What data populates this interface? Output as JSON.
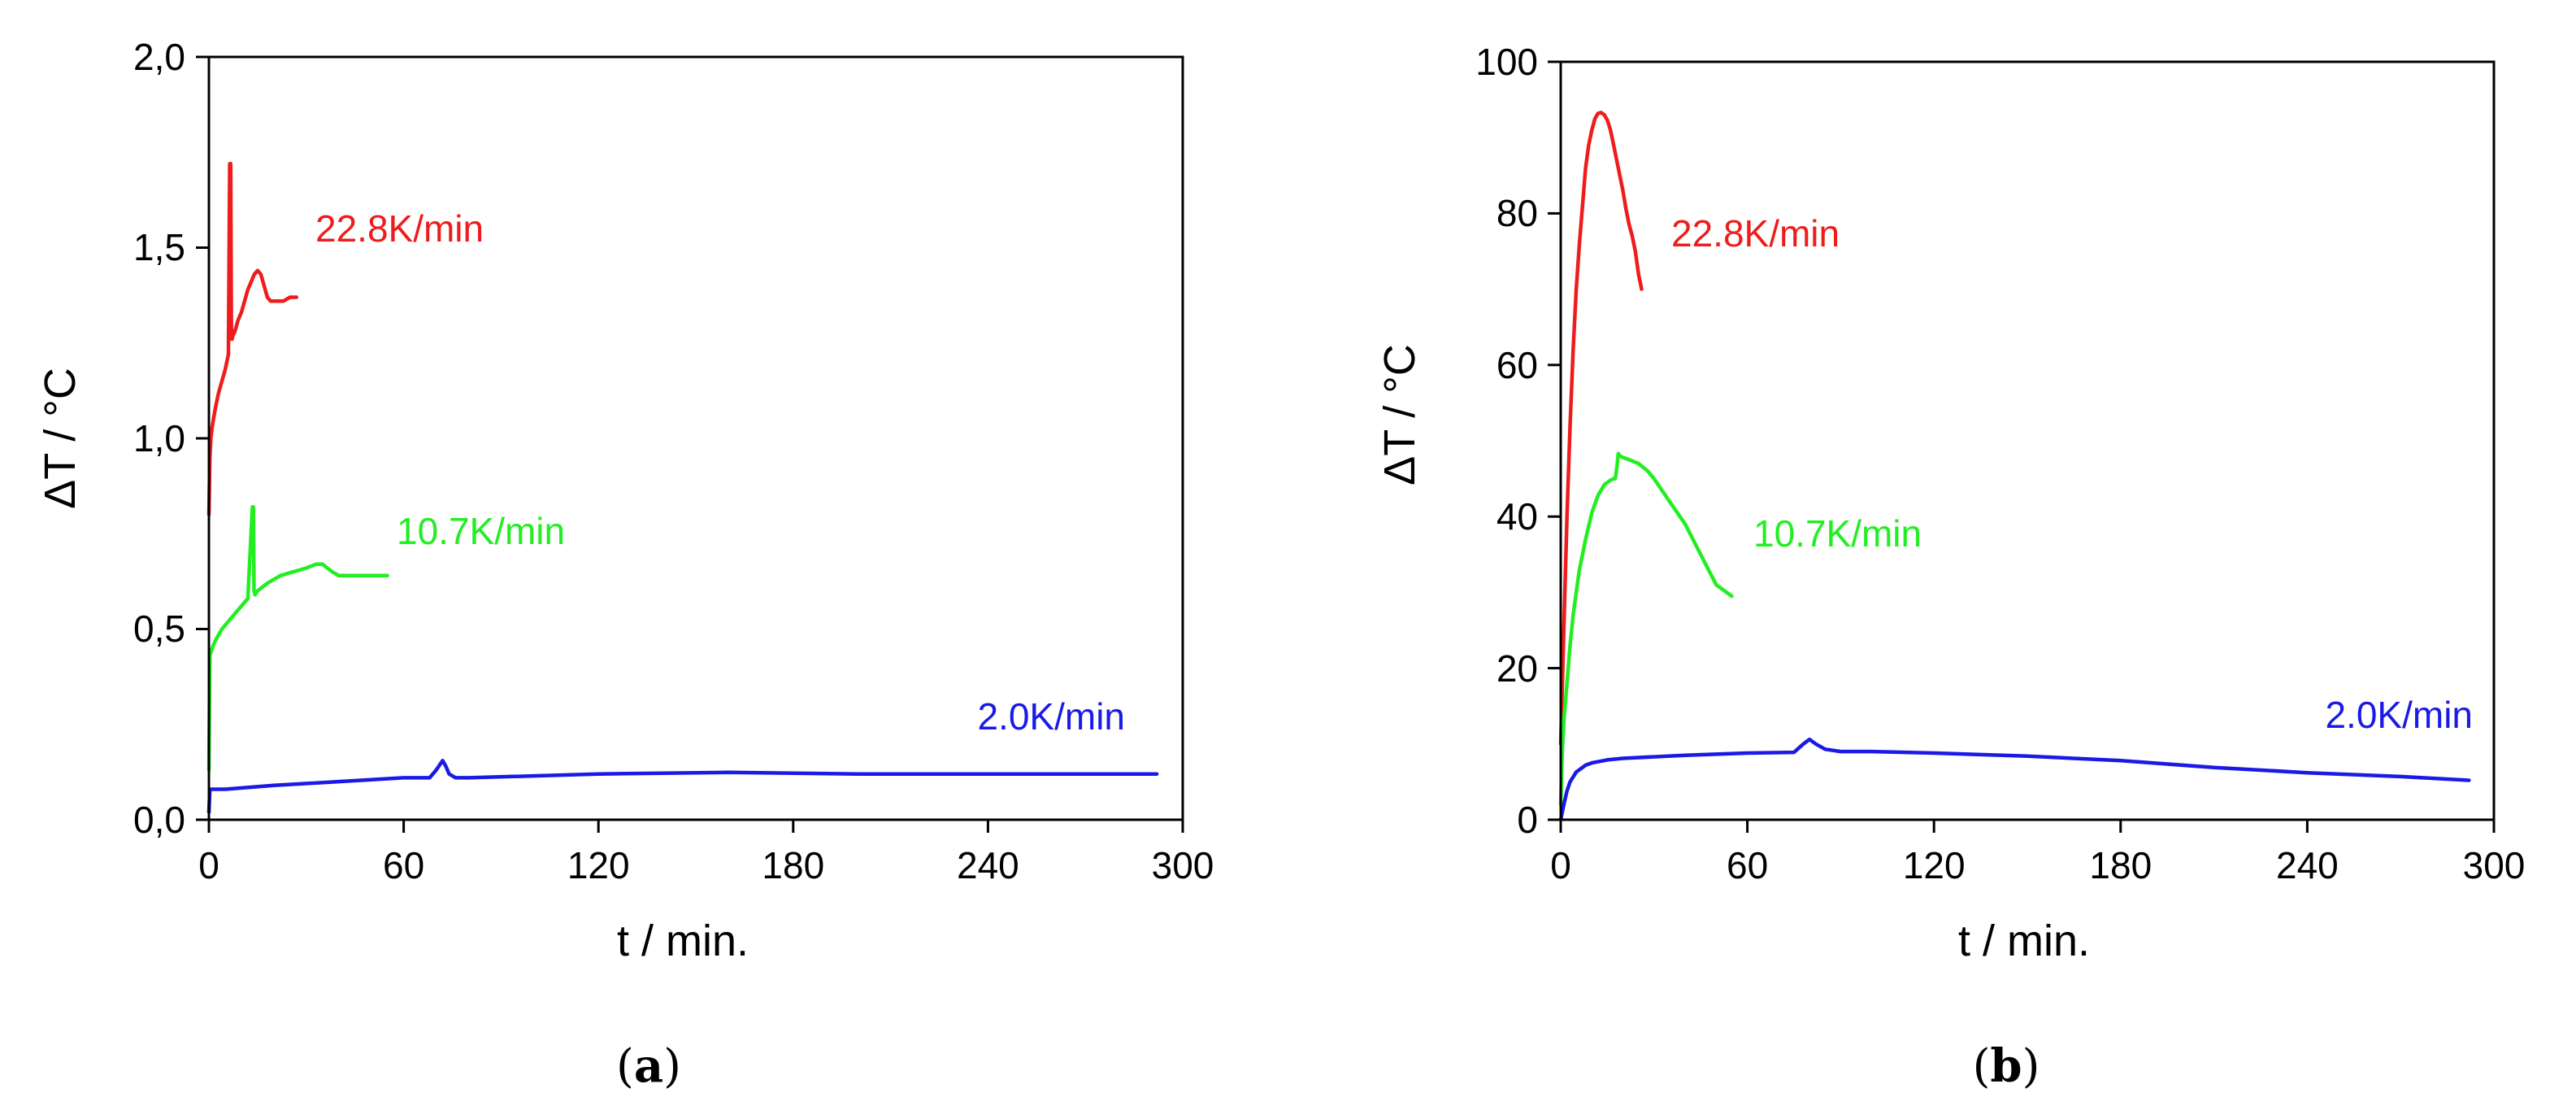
{
  "colors": {
    "red": "#ee1c1c",
    "green": "#22ee22",
    "blue": "#1a1ae6"
  },
  "chart_data": [
    {
      "type": "line",
      "panel": "a",
      "caption_label": "a",
      "xlabel": "t / min.",
      "ylabel": "ΔT / °C",
      "xlim": [
        0,
        300
      ],
      "ylim": [
        0,
        2
      ],
      "x_ticks": [
        0,
        60,
        120,
        180,
        240,
        300
      ],
      "x_tick_labels": [
        "0",
        "60",
        "120",
        "180",
        "240",
        "300"
      ],
      "y_ticks": [
        0,
        0.5,
        1,
        1.5,
        2
      ],
      "y_tick_labels": [
        "0,0",
        "0,5",
        "1,0",
        "1,5",
        "2,0"
      ],
      "series": [
        {
          "name": "22.8K/min",
          "color": "red",
          "x": [
            0,
            0.3,
            0.6,
            1,
            2,
            3,
            4,
            5,
            6,
            6.4,
            6.7,
            6.9,
            7.1,
            7.4,
            8,
            9,
            10,
            11,
            12,
            13,
            14,
            15,
            16,
            17,
            18,
            19,
            20,
            21,
            23,
            25,
            27
          ],
          "y": [
            0.8,
            0.95,
            1.0,
            1.03,
            1.08,
            1.12,
            1.15,
            1.18,
            1.22,
            1.72,
            1.72,
            1.3,
            1.26,
            1.27,
            1.28,
            1.31,
            1.33,
            1.36,
            1.39,
            1.41,
            1.43,
            1.44,
            1.43,
            1.4,
            1.37,
            1.36,
            1.36,
            1.36,
            1.36,
            1.37,
            1.37
          ]
        },
        {
          "name": "10.7K/min",
          "color": "green",
          "x": [
            0,
            0.3,
            1,
            2,
            4,
            6,
            8,
            10,
            12,
            13.4,
            13.7,
            13.9,
            14.2,
            15,
            18,
            22,
            26,
            30,
            33,
            35,
            38,
            40,
            42,
            45,
            50,
            55
          ],
          "y": [
            0.13,
            0.43,
            0.45,
            0.47,
            0.5,
            0.52,
            0.54,
            0.56,
            0.58,
            0.82,
            0.82,
            0.6,
            0.59,
            0.6,
            0.62,
            0.64,
            0.65,
            0.66,
            0.67,
            0.67,
            0.65,
            0.64,
            0.64,
            0.64,
            0.64,
            0.64
          ]
        },
        {
          "name": "2.0K/min",
          "color": "blue",
          "x": [
            0,
            0.3,
            1,
            5,
            20,
            40,
            60,
            68,
            70,
            72,
            73,
            74,
            76,
            80,
            100,
            120,
            140,
            160,
            180,
            200,
            220,
            240,
            260,
            280,
            292
          ],
          "y": [
            0.02,
            0.08,
            0.08,
            0.08,
            0.09,
            0.1,
            0.11,
            0.11,
            0.13,
            0.155,
            0.14,
            0.12,
            0.11,
            0.11,
            0.115,
            0.12,
            0.122,
            0.124,
            0.122,
            0.12,
            0.12,
            0.12,
            0.12,
            0.12,
            0.12
          ]
        }
      ]
    },
    {
      "type": "line",
      "panel": "b",
      "caption_label": "b",
      "xlabel": "t / min.",
      "ylabel": "ΔT / °C",
      "xlim": [
        0,
        300
      ],
      "ylim": [
        0,
        100
      ],
      "x_ticks": [
        0,
        60,
        120,
        180,
        240,
        300
      ],
      "x_tick_labels": [
        "0",
        "60",
        "120",
        "180",
        "240",
        "300"
      ],
      "y_ticks": [
        0,
        20,
        40,
        60,
        80,
        100
      ],
      "y_tick_labels": [
        "0",
        "20",
        "40",
        "60",
        "80",
        "100"
      ],
      "series": [
        {
          "name": "22.8K/min",
          "color": "red",
          "x": [
            0,
            1,
            2,
            3,
            4,
            5,
            6,
            7,
            8,
            9,
            10,
            11,
            12,
            13,
            14,
            15,
            16,
            17,
            18,
            19,
            20,
            21,
            22,
            23,
            24,
            25,
            26
          ],
          "y": [
            10,
            25,
            40,
            52,
            62,
            70,
            76,
            81,
            86,
            89,
            91,
            92.5,
            93.2,
            93.3,
            93,
            92.3,
            91,
            89,
            87,
            85,
            83,
            80.5,
            78.5,
            77,
            75,
            72,
            70
          ]
        },
        {
          "name": "10.7K/min",
          "color": "green",
          "x": [
            0,
            0.5,
            1,
            2,
            3,
            4,
            5,
            6,
            8,
            10,
            12,
            14,
            15,
            16,
            17,
            17.5,
            18,
            18.5,
            19,
            20,
            22,
            25,
            28,
            30,
            35,
            40,
            45,
            50,
            55
          ],
          "y": [
            2,
            9,
            13,
            18,
            23,
            27,
            30,
            33,
            37,
            40.5,
            42.8,
            44.2,
            44.5,
            44.8,
            45,
            45,
            46.3,
            48.3,
            48,
            47.8,
            47.5,
            47,
            46,
            45,
            42,
            39,
            35,
            31,
            29.5
          ]
        },
        {
          "name": "2.0K/min",
          "color": "blue",
          "x": [
            0,
            0.5,
            1,
            2,
            3,
            5,
            8,
            10,
            15,
            20,
            30,
            40,
            60,
            75,
            78,
            80,
            82,
            85,
            90,
            100,
            120,
            150,
            180,
            210,
            240,
            270,
            292
          ],
          "y": [
            0,
            1,
            2,
            3.8,
            5,
            6.3,
            7.2,
            7.5,
            7.9,
            8.1,
            8.3,
            8.5,
            8.8,
            8.9,
            10,
            10.6,
            10,
            9.3,
            9,
            9,
            8.8,
            8.4,
            7.8,
            6.9,
            6.2,
            5.7,
            5.2
          ]
        }
      ]
    }
  ]
}
